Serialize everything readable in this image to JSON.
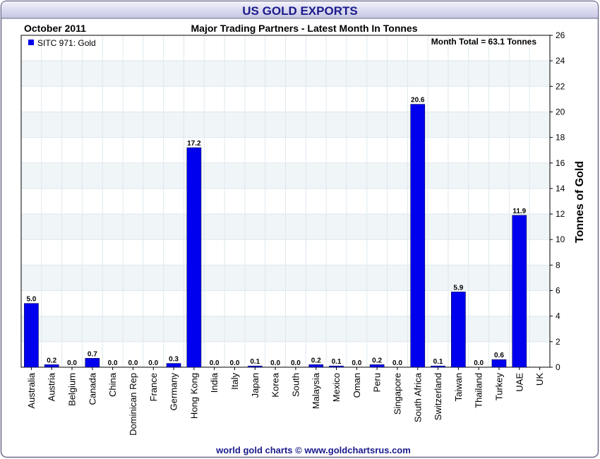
{
  "header": {
    "title": "US GOLD EXPORTS",
    "date": "October 2011",
    "subtitle": "Major Trading Partners - Latest Month In Tonnes",
    "month_total": "Month Total = 63.1 Tonnes"
  },
  "footer": {
    "credit": "world gold charts © www.goldchartsrus.com"
  },
  "colors": {
    "bar": "#0000ee",
    "title": "#1a1a8c",
    "footer": "#1a1a8c",
    "grid": "#dde8ee",
    "band": "#f0f5f8"
  },
  "chart_data": {
    "type": "bar",
    "title": "US GOLD EXPORTS",
    "ylabel": "Tonnes of Gold",
    "ylim": [
      0,
      26
    ],
    "yticks": [
      0,
      2,
      4,
      6,
      8,
      10,
      12,
      14,
      16,
      18,
      20,
      22,
      24,
      26
    ],
    "legend": {
      "label": "SITC 971: Gold",
      "position": "top-left"
    },
    "grid": true,
    "categories": [
      "Australia",
      "Austria",
      "Belgium",
      "Canada",
      "China",
      "Dominican Rep",
      "France",
      "Germany",
      "Hong Kong",
      "India",
      "Italy",
      "Japan",
      "Korea",
      "South",
      "Malaysia",
      "Mexico",
      "Oman",
      "Peru",
      "Singapore",
      "South Africa",
      "Switzerland",
      "Taiwan",
      "Thailand",
      "Turkey",
      "UAE",
      "UK"
    ],
    "values": [
      5.0,
      0.2,
      0.0,
      0.7,
      0.0,
      0.0,
      0.0,
      0.3,
      17.2,
      0.0,
      0.0,
      0.1,
      0.0,
      0.0,
      0.2,
      0.1,
      0.0,
      0.2,
      0.0,
      20.6,
      0.1,
      5.9,
      0.0,
      0.6,
      11.9,
      null
    ],
    "labels": [
      "5.0",
      "0.2",
      "0.0",
      "0.7",
      "0.0",
      "0.0",
      "0.0",
      "0.3",
      "17.2",
      "0.0",
      "0.0",
      "0.1",
      "0.0",
      "0.0",
      "0.2",
      "0.1",
      "0.0",
      "0.2",
      "0.0",
      "20.6",
      "0.1",
      "5.9",
      "0.0",
      "0.6",
      "11.9",
      ""
    ]
  }
}
